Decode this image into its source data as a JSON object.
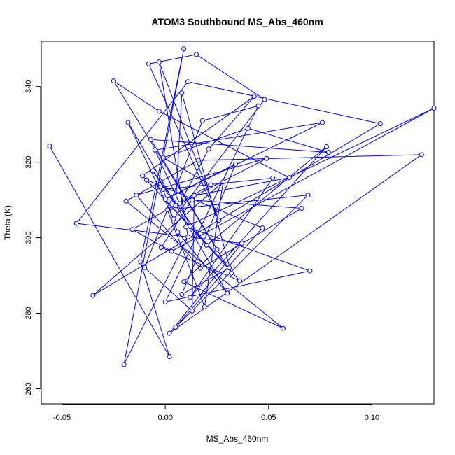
{
  "chart_data": {
    "type": "line",
    "title": "ATOM3 Southbound MS_Abs_460nm",
    "xlabel": "MS_Abs_460nm",
    "ylabel": "Theta (K)",
    "xlim": [
      -0.06,
      0.13
    ],
    "ylim": [
      256,
      352
    ],
    "xticks": [
      -0.05,
      0.0,
      0.05,
      0.1
    ],
    "xtick_labels": [
      "-0.05",
      "0.00",
      "0.05",
      "0.10"
    ],
    "yticks": [
      260,
      280,
      300,
      320,
      340
    ],
    "ytick_labels": [
      "260",
      "280",
      "300",
      "320",
      "340"
    ],
    "grid": false,
    "line_color": "#0000ff",
    "marker": "open-circle",
    "x": [
      -0.056,
      0.002,
      -0.012,
      0.009,
      -0.02,
      0.011,
      -0.003,
      0.026,
      -0.008,
      0.015,
      0.048,
      0.004,
      -0.018,
      0.03,
      0.006,
      -0.001,
      0.052,
      0.012,
      0.078,
      0.02,
      -0.006,
      0.005,
      0.008,
      0.032,
      -0.025,
      -0.003,
      0.06,
      0.014,
      0.013,
      -0.01,
      0.018,
      0.045,
      0.0,
      0.07,
      0.01,
      0.13,
      0.003,
      -0.016,
      0.022,
      -0.001,
      0.04,
      0.079,
      -0.007,
      0.025,
      0.009,
      0.057,
      -0.019,
      0.016,
      0.124,
      0.002,
      0.037,
      -0.043,
      0.011,
      0.104,
      -0.035,
      0.028,
      0.019,
      0.001,
      0.069,
      0.005,
      0.047,
      -0.009,
      0.036,
      -0.002,
      0.013,
      0.066,
      0.017,
      -0.014,
      0.049,
      0.007,
      0.021,
      0.043,
      -0.011,
      0.031,
      0.008,
      0.034,
      0.0,
      0.076,
      -0.005,
      0.012
    ],
    "y": [
      324.3,
      268.5,
      293.6,
      350.0,
      266.4,
      300.2,
      346.5,
      304.6,
      346.0,
      348.5,
      336.6,
      305.0,
      330.5,
      285.3,
      301.5,
      312.8,
      315.8,
      284.2,
      324.1,
      298.0,
      317.7,
      308.5,
      338.3,
      290.6,
      341.5,
      333.5,
      315.9,
      311.2,
      280.6,
      292.1,
      331.0,
      334.9,
      283.0,
      291.2,
      302.9,
      334.3,
      296.4,
      302.2,
      314.0,
      321.2,
      329.0,
      322.6,
      326.0,
      296.9,
      288.3,
      276.0,
      309.7,
      320.5,
      322.0,
      274.7,
      298.5,
      303.8,
      341.3,
      330.2,
      284.7,
      314.8,
      281.7,
      307.4,
      311.3,
      276.3,
      302.6,
      315.3,
      288.6,
      297.4,
      310.0,
      307.8,
      291.9,
      311.3,
      321.0,
      309.0,
      323.5,
      337.4,
      316.4,
      292.0,
      285.0,
      319.5,
      310.2,
      330.5,
      323.2,
      303.1
    ]
  }
}
